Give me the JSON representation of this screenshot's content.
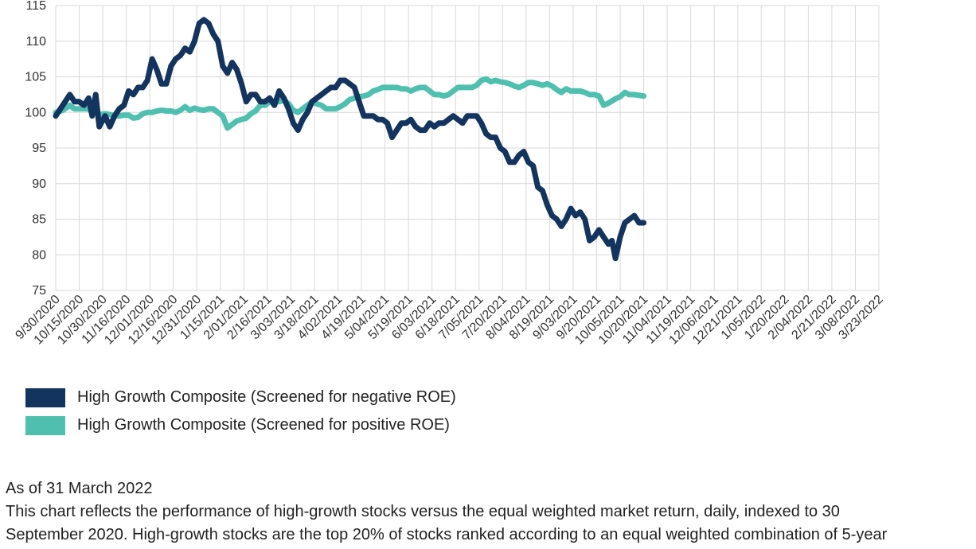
{
  "colors": {
    "negative": "#12345f",
    "positive": "#4fc0b0",
    "grid": "#d9d9d9"
  },
  "legend": {
    "negative": "High Growth Composite (Screened for negative ROE)",
    "positive": "High Growth Composite (Screened for positive ROE)"
  },
  "notes": {
    "as_of": "As of 31 March 2022",
    "line1": "This chart reflects the performance of high-growth stocks versus the equal weighted market return, daily, indexed to 30",
    "line2": "September 2020. High-growth stocks are the top 20% of stocks ranked according to an equal weighted combination of 5-year"
  },
  "chart_data": {
    "type": "line",
    "ylim": [
      75,
      115
    ],
    "yticks": [
      75,
      80,
      85,
      90,
      95,
      100,
      105,
      110,
      115
    ],
    "grid": true,
    "legend_position": "bottom",
    "categories": [
      "9/30/2020",
      "10/15/2020",
      "10/30/2020",
      "11/16/2020",
      "12/01/2020",
      "12/16/2020",
      "12/31/2020",
      "1/15/2021",
      "2/01/2021",
      "2/16/2021",
      "3/03/2021",
      "3/18/2021",
      "4/02/2021",
      "4/19/2021",
      "5/04/2021",
      "5/19/2021",
      "6/03/2021",
      "6/18/2021",
      "7/05/2021",
      "7/20/2021",
      "8/04/2021",
      "8/19/2021",
      "9/03/2021",
      "9/20/2021",
      "10/05/2021",
      "10/20/2021",
      "11/04/2021",
      "11/19/2021",
      "12/06/2021",
      "12/21/2021",
      "1/05/2022",
      "1/20/2022",
      "2/04/2022",
      "2/21/2022",
      "3/08/2022",
      "3/23/2022"
    ],
    "series": [
      {
        "name": "High Growth Composite (Screened for negative ROE)",
        "color": "#12345f",
        "values": [
          [
            0,
            99.5
          ],
          [
            0.3,
            101
          ],
          [
            0.6,
            102.5
          ],
          [
            0.8,
            101.5
          ],
          [
            1,
            101.5
          ],
          [
            1.2,
            101
          ],
          [
            1.4,
            102
          ],
          [
            1.55,
            99.5
          ],
          [
            1.7,
            102.5
          ],
          [
            1.85,
            98
          ],
          [
            2.1,
            99.5
          ],
          [
            2.3,
            98
          ],
          [
            2.5,
            99.5
          ],
          [
            2.7,
            100.5
          ],
          [
            2.9,
            101
          ],
          [
            3.1,
            103
          ],
          [
            3.3,
            102.5
          ],
          [
            3.5,
            103.5
          ],
          [
            3.7,
            103.5
          ],
          [
            3.9,
            104.5
          ],
          [
            4.1,
            107.5
          ],
          [
            4.3,
            106
          ],
          [
            4.5,
            104
          ],
          [
            4.7,
            104
          ],
          [
            4.9,
            106.5
          ],
          [
            5.1,
            107.5
          ],
          [
            5.3,
            108
          ],
          [
            5.5,
            109
          ],
          [
            5.7,
            108.5
          ],
          [
            5.9,
            110
          ],
          [
            6.1,
            112.5
          ],
          [
            6.3,
            113
          ],
          [
            6.5,
            112.5
          ],
          [
            6.7,
            111
          ],
          [
            6.9,
            110
          ],
          [
            7.1,
            106.5
          ],
          [
            7.3,
            105.5
          ],
          [
            7.5,
            107
          ],
          [
            7.7,
            106
          ],
          [
            7.9,
            104
          ],
          [
            8.1,
            101.5
          ],
          [
            8.3,
            102.5
          ],
          [
            8.5,
            102.5
          ],
          [
            8.7,
            101.5
          ],
          [
            8.9,
            101.5
          ],
          [
            9.1,
            102
          ],
          [
            9.3,
            101
          ],
          [
            9.5,
            103
          ],
          [
            9.7,
            102
          ],
          [
            9.9,
            100.5
          ],
          [
            10.1,
            98.5
          ],
          [
            10.3,
            97.5
          ],
          [
            10.5,
            99
          ],
          [
            10.7,
            100
          ],
          [
            10.9,
            101.5
          ],
          [
            11.1,
            102
          ],
          [
            11.3,
            102.5
          ],
          [
            11.5,
            103
          ],
          [
            11.7,
            103.5
          ],
          [
            11.9,
            103.5
          ],
          [
            12.1,
            104.5
          ],
          [
            12.3,
            104.5
          ],
          [
            12.5,
            104
          ],
          [
            12.7,
            103.5
          ],
          [
            12.9,
            101.5
          ],
          [
            13.1,
            99.5
          ],
          [
            13.3,
            99.5
          ],
          [
            13.5,
            99.5
          ],
          [
            13.7,
            99
          ],
          [
            13.9,
            99
          ],
          [
            14.1,
            98.5
          ],
          [
            14.3,
            96.5
          ],
          [
            14.5,
            97.5
          ],
          [
            14.7,
            98.5
          ],
          [
            14.9,
            98.5
          ],
          [
            15.1,
            99
          ],
          [
            15.3,
            98
          ],
          [
            15.5,
            97.5
          ],
          [
            15.7,
            97.5
          ],
          [
            15.9,
            98.5
          ],
          [
            16.1,
            98
          ],
          [
            16.3,
            98.5
          ],
          [
            16.5,
            98.5
          ],
          [
            16.7,
            99
          ],
          [
            16.9,
            99.5
          ],
          [
            17.1,
            99
          ],
          [
            17.3,
            98.5
          ],
          [
            17.5,
            99.5
          ],
          [
            17.7,
            99.5
          ],
          [
            17.9,
            99.5
          ],
          [
            18.1,
            98.5
          ],
          [
            18.3,
            97
          ],
          [
            18.5,
            96.5
          ],
          [
            18.7,
            96.5
          ],
          [
            18.9,
            95
          ],
          [
            19.1,
            94.5
          ],
          [
            19.3,
            93
          ],
          [
            19.5,
            93
          ],
          [
            19.7,
            94
          ],
          [
            19.9,
            94.5
          ],
          [
            20.1,
            93
          ],
          [
            20.3,
            92.5
          ],
          [
            20.5,
            89.5
          ],
          [
            20.7,
            89
          ],
          [
            20.9,
            87
          ],
          [
            21.1,
            85.5
          ],
          [
            21.3,
            85
          ],
          [
            21.5,
            84
          ],
          [
            21.7,
            85
          ],
          [
            21.9,
            86.5
          ],
          [
            22.1,
            85.5
          ],
          [
            22.3,
            86
          ],
          [
            22.5,
            85
          ],
          [
            22.7,
            82
          ],
          [
            22.9,
            82.5
          ],
          [
            23.1,
            83.5
          ],
          [
            23.3,
            82.5
          ],
          [
            23.5,
            81.5
          ],
          [
            23.65,
            82
          ],
          [
            23.8,
            79.5
          ],
          [
            24,
            82.5
          ],
          [
            24.2,
            84.5
          ],
          [
            24.4,
            85
          ],
          [
            24.6,
            85.5
          ],
          [
            24.8,
            84.5
          ],
          [
            25,
            84.5
          ]
        ]
      },
      {
        "name": "High Growth Composite (Screened for positive ROE)",
        "color": "#4fc0b0",
        "values": [
          [
            0,
            100
          ],
          [
            0.3,
            100.3
          ],
          [
            0.6,
            101
          ],
          [
            0.8,
            100.5
          ],
          [
            1,
            100.5
          ],
          [
            1.2,
            100.5
          ],
          [
            1.4,
            100.5
          ],
          [
            1.55,
            100
          ],
          [
            1.7,
            100.2
          ],
          [
            1.85,
            99.7
          ],
          [
            2.1,
            99.8
          ],
          [
            2.3,
            99.7
          ],
          [
            2.5,
            99.5
          ],
          [
            2.7,
            99.5
          ],
          [
            2.9,
            99.6
          ],
          [
            3.1,
            99.6
          ],
          [
            3.3,
            99.2
          ],
          [
            3.5,
            99.3
          ],
          [
            3.7,
            99.8
          ],
          [
            3.9,
            100
          ],
          [
            4.1,
            100
          ],
          [
            4.3,
            100.2
          ],
          [
            4.5,
            100.3
          ],
          [
            4.7,
            100.2
          ],
          [
            4.9,
            100.2
          ],
          [
            5.1,
            100
          ],
          [
            5.3,
            100.3
          ],
          [
            5.5,
            100.8
          ],
          [
            5.7,
            100.3
          ],
          [
            5.9,
            100.6
          ],
          [
            6.1,
            100.4
          ],
          [
            6.3,
            100.3
          ],
          [
            6.5,
            100.5
          ],
          [
            6.7,
            100.5
          ],
          [
            6.9,
            100
          ],
          [
            7.1,
            99.5
          ],
          [
            7.3,
            97.8
          ],
          [
            7.5,
            98.3
          ],
          [
            7.7,
            98.8
          ],
          [
            7.9,
            99
          ],
          [
            8.1,
            99.2
          ],
          [
            8.3,
            99.8
          ],
          [
            8.5,
            100.2
          ],
          [
            8.7,
            101
          ],
          [
            8.9,
            101
          ],
          [
            9.1,
            101.5
          ],
          [
            9.3,
            101.5
          ],
          [
            9.5,
            101.5
          ],
          [
            9.7,
            101.7
          ],
          [
            9.9,
            101.2
          ],
          [
            10.1,
            100.3
          ],
          [
            10.3,
            100
          ],
          [
            10.5,
            100.5
          ],
          [
            10.7,
            101
          ],
          [
            10.9,
            101.5
          ],
          [
            11.1,
            101.2
          ],
          [
            11.3,
            101
          ],
          [
            11.5,
            100.5
          ],
          [
            11.7,
            100.5
          ],
          [
            11.9,
            100.5
          ],
          [
            12.1,
            100.8
          ],
          [
            12.3,
            101.2
          ],
          [
            12.5,
            101.8
          ],
          [
            12.7,
            102
          ],
          [
            12.9,
            102.2
          ],
          [
            13.1,
            102.3
          ],
          [
            13.3,
            102.5
          ],
          [
            13.5,
            103
          ],
          [
            13.7,
            103.2
          ],
          [
            13.9,
            103.5
          ],
          [
            14.1,
            103.5
          ],
          [
            14.3,
            103.5
          ],
          [
            14.5,
            103.5
          ],
          [
            14.7,
            103.3
          ],
          [
            14.9,
            103.3
          ],
          [
            15.1,
            103
          ],
          [
            15.3,
            103.3
          ],
          [
            15.5,
            103.5
          ],
          [
            15.7,
            103.5
          ],
          [
            15.9,
            103
          ],
          [
            16.1,
            102.5
          ],
          [
            16.3,
            102.5
          ],
          [
            16.5,
            102.3
          ],
          [
            16.7,
            102.5
          ],
          [
            16.9,
            103
          ],
          [
            17.1,
            103.5
          ],
          [
            17.3,
            103.5
          ],
          [
            17.5,
            103.5
          ],
          [
            17.7,
            103.5
          ],
          [
            17.9,
            103.8
          ],
          [
            18.1,
            104.5
          ],
          [
            18.3,
            104.7
          ],
          [
            18.5,
            104.3
          ],
          [
            18.7,
            104.5
          ],
          [
            18.9,
            104.3
          ],
          [
            19.1,
            104.2
          ],
          [
            19.3,
            104
          ],
          [
            19.5,
            103.7
          ],
          [
            19.7,
            103.5
          ],
          [
            19.9,
            103.8
          ],
          [
            20.1,
            104.2
          ],
          [
            20.3,
            104.2
          ],
          [
            20.5,
            104
          ],
          [
            20.7,
            103.8
          ],
          [
            20.9,
            104
          ],
          [
            21.1,
            103.7
          ],
          [
            21.3,
            103.2
          ],
          [
            21.5,
            102.8
          ],
          [
            21.7,
            103.3
          ],
          [
            21.9,
            103
          ],
          [
            22.1,
            103
          ],
          [
            22.3,
            103
          ],
          [
            22.5,
            102.8
          ],
          [
            22.7,
            102.5
          ],
          [
            22.9,
            102.5
          ],
          [
            23.1,
            102.3
          ],
          [
            23.3,
            101
          ],
          [
            23.5,
            101.3
          ],
          [
            23.65,
            101.6
          ],
          [
            23.8,
            101.9
          ],
          [
            24,
            102.2
          ],
          [
            24.2,
            102.8
          ],
          [
            24.4,
            102.5
          ],
          [
            24.6,
            102.5
          ],
          [
            24.8,
            102.4
          ],
          [
            25,
            102.3
          ]
        ]
      }
    ]
  }
}
